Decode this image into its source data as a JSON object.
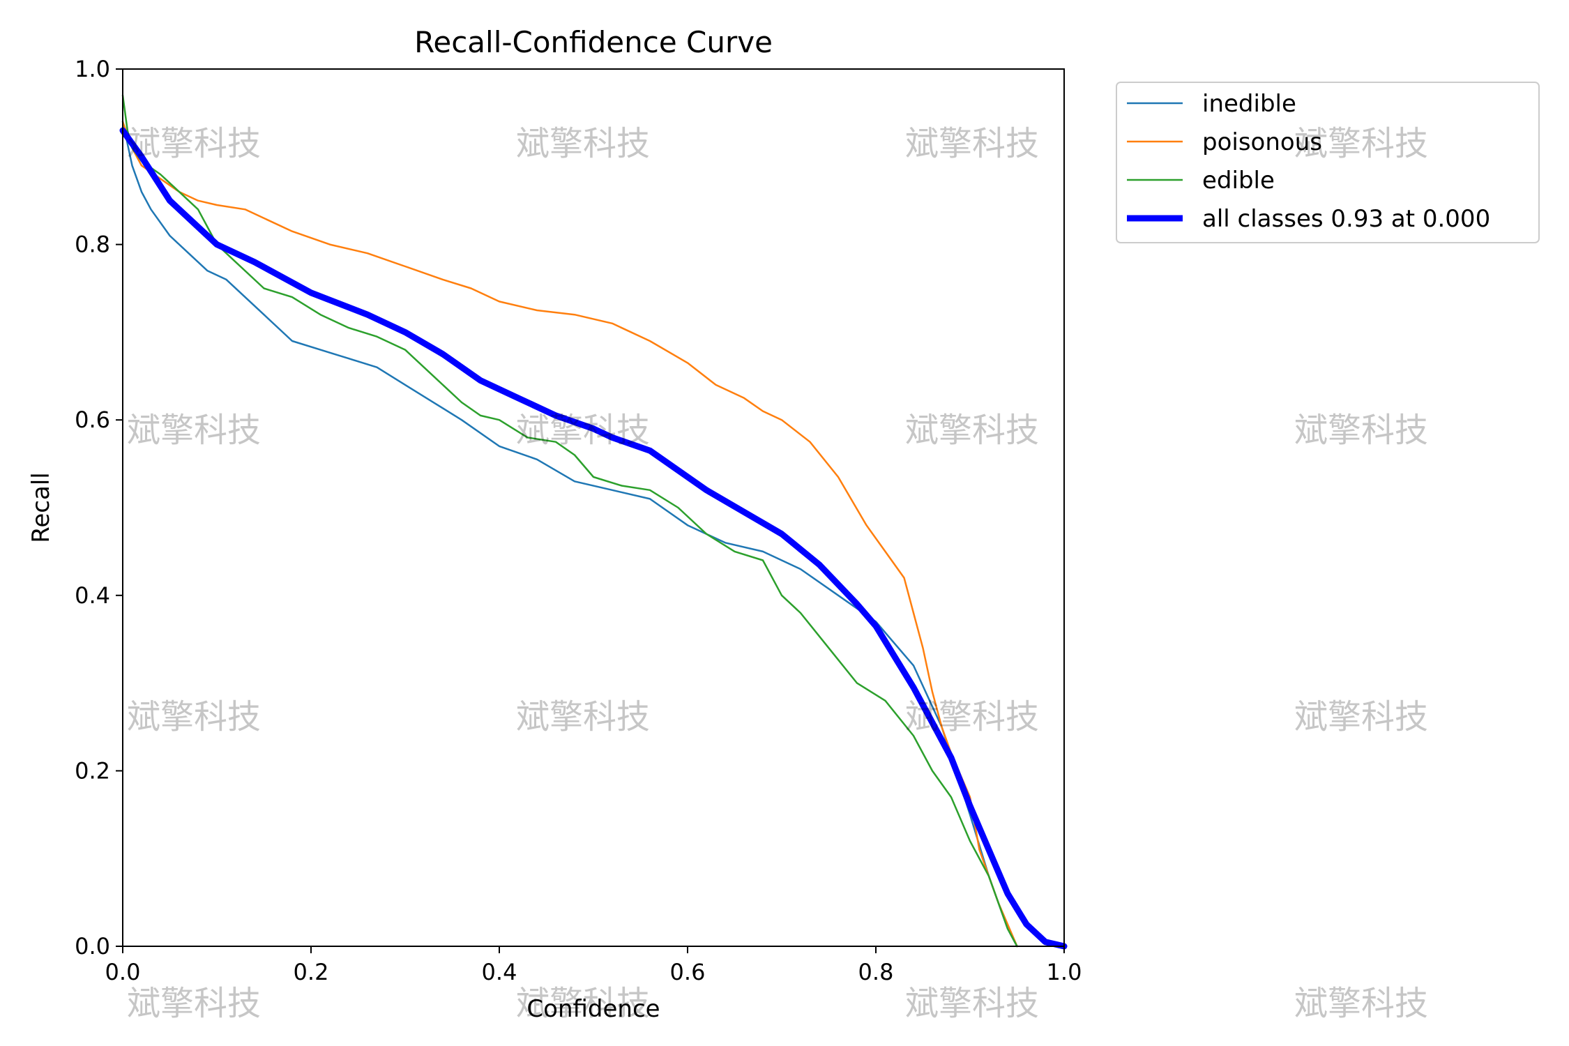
{
  "chart_data": {
    "type": "line",
    "title": "Recall-Confidence Curve",
    "xlabel": "Confidence",
    "ylabel": "Recall",
    "xlim": [
      0,
      1
    ],
    "ylim": [
      0,
      1
    ],
    "xticks": [
      0.0,
      0.2,
      0.4,
      0.6,
      0.8,
      1.0
    ],
    "yticks": [
      0.0,
      0.2,
      0.4,
      0.6,
      0.8,
      1.0
    ],
    "xtick_labels": [
      "0.0",
      "0.2",
      "0.4",
      "0.6",
      "0.8",
      "1.0"
    ],
    "ytick_labels": [
      "0.0",
      "0.2",
      "0.4",
      "0.6",
      "0.8",
      "1.0"
    ],
    "grid": false,
    "legend_position": "outside top-right",
    "series": [
      {
        "name": "inedible",
        "color": "#1f77b4",
        "width": "thin",
        "x": [
          0,
          0.01,
          0.02,
          0.03,
          0.05,
          0.07,
          0.09,
          0.11,
          0.13,
          0.15,
          0.18,
          0.21,
          0.24,
          0.27,
          0.3,
          0.33,
          0.36,
          0.4,
          0.44,
          0.48,
          0.52,
          0.56,
          0.6,
          0.64,
          0.68,
          0.72,
          0.76,
          0.8,
          0.84,
          0.87,
          0.9,
          0.92,
          0.94,
          0.95
        ],
        "values": [
          0.94,
          0.89,
          0.86,
          0.84,
          0.81,
          0.79,
          0.77,
          0.76,
          0.74,
          0.72,
          0.69,
          0.68,
          0.67,
          0.66,
          0.64,
          0.62,
          0.6,
          0.57,
          0.555,
          0.53,
          0.52,
          0.51,
          0.48,
          0.46,
          0.45,
          0.43,
          0.4,
          0.37,
          0.32,
          0.25,
          0.15,
          0.08,
          0.02,
          0.0
        ]
      },
      {
        "name": "poisonous",
        "color": "#ff7f0e",
        "width": "thin",
        "x": [
          0,
          0.01,
          0.02,
          0.04,
          0.06,
          0.08,
          0.1,
          0.13,
          0.15,
          0.18,
          0.22,
          0.26,
          0.3,
          0.34,
          0.37,
          0.4,
          0.44,
          0.48,
          0.52,
          0.56,
          0.6,
          0.63,
          0.66,
          0.68,
          0.7,
          0.73,
          0.76,
          0.79,
          0.81,
          0.83,
          0.84,
          0.85,
          0.86,
          0.87,
          0.88,
          0.9,
          0.91,
          0.93,
          0.95
        ],
        "values": [
          0.94,
          0.91,
          0.89,
          0.875,
          0.86,
          0.85,
          0.845,
          0.84,
          0.83,
          0.815,
          0.8,
          0.79,
          0.775,
          0.76,
          0.75,
          0.735,
          0.725,
          0.72,
          0.71,
          0.69,
          0.665,
          0.64,
          0.625,
          0.61,
          0.6,
          0.575,
          0.535,
          0.48,
          0.45,
          0.42,
          0.38,
          0.34,
          0.29,
          0.25,
          0.22,
          0.17,
          0.11,
          0.05,
          0.0
        ]
      },
      {
        "name": "edible",
        "color": "#2ca02c",
        "width": "thin",
        "x": [
          0,
          0.005,
          0.01,
          0.02,
          0.04,
          0.06,
          0.08,
          0.1,
          0.12,
          0.15,
          0.18,
          0.21,
          0.24,
          0.27,
          0.3,
          0.33,
          0.36,
          0.38,
          0.4,
          0.43,
          0.46,
          0.48,
          0.5,
          0.53,
          0.56,
          0.59,
          0.62,
          0.65,
          0.68,
          0.7,
          0.72,
          0.75,
          0.78,
          0.81,
          0.84,
          0.86,
          0.88,
          0.9,
          0.92,
          0.94,
          0.95
        ],
        "values": [
          0.97,
          0.93,
          0.91,
          0.895,
          0.88,
          0.86,
          0.84,
          0.8,
          0.78,
          0.75,
          0.74,
          0.72,
          0.705,
          0.695,
          0.68,
          0.65,
          0.62,
          0.605,
          0.6,
          0.58,
          0.575,
          0.56,
          0.535,
          0.525,
          0.52,
          0.5,
          0.47,
          0.45,
          0.44,
          0.4,
          0.38,
          0.34,
          0.3,
          0.28,
          0.24,
          0.2,
          0.17,
          0.12,
          0.08,
          0.02,
          0.0
        ]
      },
      {
        "name": "all classes 0.93 at 0.000",
        "color": "#0000ff",
        "width": "thick",
        "x": [
          0,
          0.02,
          0.05,
          0.08,
          0.1,
          0.14,
          0.2,
          0.26,
          0.3,
          0.34,
          0.38,
          0.42,
          0.46,
          0.5,
          0.52,
          0.56,
          0.58,
          0.62,
          0.66,
          0.7,
          0.74,
          0.78,
          0.8,
          0.82,
          0.84,
          0.86,
          0.88,
          0.9,
          0.92,
          0.94,
          0.96,
          0.98,
          1.0
        ],
        "values": [
          0.93,
          0.9,
          0.85,
          0.82,
          0.8,
          0.78,
          0.745,
          0.72,
          0.7,
          0.675,
          0.645,
          0.625,
          0.605,
          0.59,
          0.58,
          0.565,
          0.55,
          0.52,
          0.495,
          0.47,
          0.435,
          0.39,
          0.365,
          0.33,
          0.295,
          0.255,
          0.215,
          0.16,
          0.11,
          0.06,
          0.025,
          0.005,
          0.0
        ]
      }
    ],
    "watermark": "斌擎科技"
  }
}
